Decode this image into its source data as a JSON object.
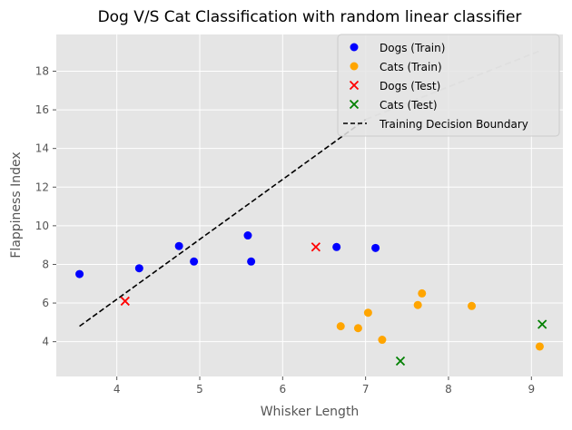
{
  "chart_data": {
    "type": "scatter",
    "title": "Dog V/S Cat Classification with random linear classifier",
    "xlabel": "Whisker Length",
    "ylabel": "Flappiness Index",
    "xlim": [
      3.27,
      9.38
    ],
    "ylim": [
      2.2,
      19.9
    ],
    "grid": true,
    "legend_position": "top-right",
    "x_ticks": [
      4,
      5,
      6,
      7,
      8,
      9
    ],
    "y_ticks": [
      4,
      6,
      8,
      10,
      12,
      14,
      16,
      18
    ],
    "series": [
      {
        "name": "Dogs (Train)",
        "marker": "circle",
        "color": "#0000ff",
        "points": [
          [
            3.55,
            7.5
          ],
          [
            4.27,
            7.8
          ],
          [
            4.75,
            8.95
          ],
          [
            4.93,
            8.15
          ],
          [
            5.58,
            9.5
          ],
          [
            5.62,
            8.15
          ],
          [
            6.65,
            8.9
          ],
          [
            7.12,
            8.85
          ]
        ]
      },
      {
        "name": "Cats (Train)",
        "marker": "circle",
        "color": "#ffa500",
        "points": [
          [
            6.7,
            4.8
          ],
          [
            6.91,
            4.7
          ],
          [
            7.03,
            5.5
          ],
          [
            7.2,
            4.1
          ],
          [
            7.63,
            5.9
          ],
          [
            7.68,
            6.5
          ],
          [
            8.28,
            5.85
          ],
          [
            9.1,
            3.75
          ]
        ]
      },
      {
        "name": "Dogs (Test)",
        "marker": "x",
        "color": "#ff0000",
        "points": [
          [
            4.1,
            6.1
          ],
          [
            6.4,
            8.9
          ]
        ]
      },
      {
        "name": "Cats (Test)",
        "marker": "x",
        "color": "#008000",
        "points": [
          [
            7.42,
            3.0
          ],
          [
            9.13,
            4.9
          ]
        ]
      }
    ],
    "boundary": {
      "name": "Training Decision Boundary",
      "color": "#000000",
      "x": [
        3.55,
        7.0
      ],
      "y": [
        4.8,
        15.5
      ]
    },
    "boundary_extension": {
      "color": "#bbbbbb",
      "x": [
        7.0,
        9.13
      ],
      "y": [
        15.5,
        19.1
      ]
    }
  }
}
